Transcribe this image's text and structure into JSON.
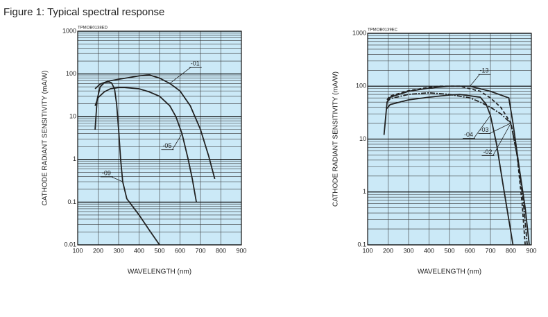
{
  "title": "Figure 1: Typical spectral response",
  "chart_data": [
    {
      "type": "line",
      "subtitle": "TPMOB0138ED",
      "x_label": "WAVELENGTH (nm)",
      "y_label": "CATHODE RADIANT SENSITIVITY (mA/W)",
      "xlim": [
        100,
        900
      ],
      "xticks": [
        100,
        200,
        300,
        400,
        500,
        600,
        700,
        800,
        900
      ],
      "ylim": [
        0.01,
        1000
      ],
      "yticks": [
        0.01,
        0.1,
        1,
        10,
        100,
        1000
      ],
      "log_y": true,
      "grid": true,
      "background": "#cbe9f7",
      "series": [
        {
          "name": "-01",
          "color": "#222222",
          "x": [
            185,
            210,
            250,
            300,
            350,
            400,
            450,
            500,
            550,
            600,
            650,
            700,
            740,
            770
          ],
          "values": [
            45,
            58,
            68,
            75,
            82,
            90,
            95,
            80,
            60,
            40,
            18,
            5,
            1.2,
            0.35
          ]
        },
        {
          "name": "-05",
          "color": "#222222",
          "x": [
            185,
            200,
            230,
            260,
            300,
            330,
            400,
            450,
            500,
            550,
            580,
            610,
            640,
            660,
            680
          ],
          "values": [
            18,
            28,
            38,
            45,
            48,
            48,
            45,
            38,
            30,
            18,
            10,
            4,
            1,
            0.35,
            0.1
          ]
        },
        {
          "name": "-09",
          "color": "#222222",
          "x": [
            185,
            195,
            210,
            230,
            250,
            265,
            280,
            290,
            300,
            310,
            320,
            340,
            400,
            450,
            500
          ],
          "values": [
            5,
            25,
            50,
            62,
            65,
            62,
            45,
            20,
            5,
            1,
            0.3,
            0.12,
            0.05,
            0.022,
            0.01
          ]
        }
      ]
    },
    {
      "type": "line",
      "subtitle": "TPMOB0139EC",
      "x_label": "WAVELENGTH (nm)",
      "y_label": "CATHODE RADIANT SENSITIVITY (mA/W)",
      "xlim": [
        100,
        900
      ],
      "xticks": [
        100,
        200,
        300,
        400,
        500,
        600,
        700,
        800,
        900
      ],
      "ylim": [
        0.1,
        1000
      ],
      "yticks": [
        0.1,
        1,
        10,
        100,
        1000
      ],
      "log_y": true,
      "grid": true,
      "background": "#cbe9f7",
      "series": [
        {
          "name": "-13",
          "color": "#222222",
          "x": [
            180,
            195,
            210,
            300,
            400,
            500,
            600,
            700,
            790,
            810,
            840,
            870,
            890
          ],
          "values": [
            12,
            50,
            62,
            80,
            92,
            100,
            100,
            80,
            60,
            20,
            3,
            0.5,
            0.1
          ]
        },
        {
          "name": "-03",
          "color": "#222222",
          "dash": "7,2,2,2",
          "x": [
            195,
            210,
            300,
            400,
            500,
            600,
            650,
            700,
            750,
            800,
            830,
            860,
            880
          ],
          "values": [
            50,
            58,
            70,
            75,
            70,
            60,
            50,
            40,
            30,
            20,
            5,
            0.7,
            0.1
          ]
        },
        {
          "name": "-02",
          "color": "#222222",
          "dash": "5,3",
          "x": [
            195,
            210,
            300,
            400,
            450,
            550,
            650,
            700,
            750,
            800,
            830,
            855,
            870
          ],
          "values": [
            55,
            65,
            82,
            95,
            100,
            100,
            80,
            60,
            40,
            20,
            5,
            0.6,
            0.1
          ]
        },
        {
          "name": "-04",
          "color": "#222222",
          "x": [
            195,
            210,
            300,
            400,
            500,
            550,
            650,
            680,
            700,
            730,
            760,
            790,
            810
          ],
          "values": [
            38,
            45,
            55,
            62,
            68,
            70,
            62,
            45,
            28,
            8,
            1.5,
            0.3,
            0.1
          ]
        }
      ]
    }
  ]
}
